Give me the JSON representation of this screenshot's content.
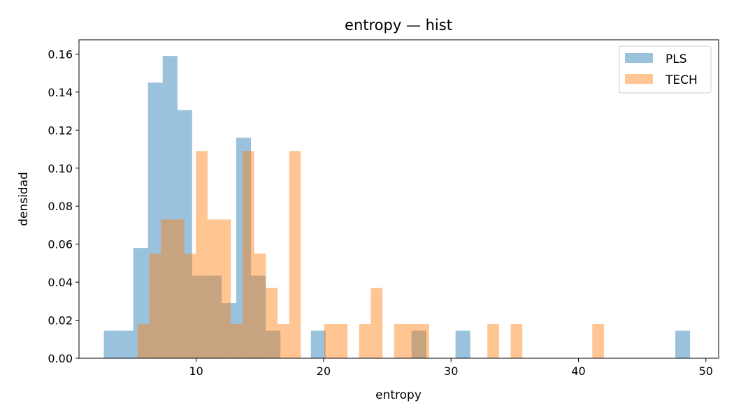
{
  "chart_data": {
    "type": "bar",
    "title": "entropy — hist",
    "xlabel": "entropy",
    "ylabel": "densidad",
    "xlim": [
      0.8,
      51.0
    ],
    "ylim": [
      0,
      0.1675
    ],
    "x_ticks": [
      10,
      20,
      30,
      40,
      50
    ],
    "y_ticks": [
      0.0,
      0.02,
      0.04,
      0.06,
      0.08,
      0.1,
      0.12,
      0.14,
      0.16
    ],
    "legend_position": "top-right",
    "grid": false,
    "series": [
      {
        "name": "PLS",
        "color": "#1f77b4",
        "opacity": 0.45,
        "bin_width": 1.155,
        "bins": [
          {
            "x0": 2.75,
            "value": 0.0145
          },
          {
            "x0": 3.905,
            "value": 0.0145
          },
          {
            "x0": 5.06,
            "value": 0.058
          },
          {
            "x0": 6.215,
            "value": 0.145
          },
          {
            "x0": 7.37,
            "value": 0.159
          },
          {
            "x0": 8.525,
            "value": 0.1305
          },
          {
            "x0": 9.68,
            "value": 0.0435
          },
          {
            "x0": 10.835,
            "value": 0.0435
          },
          {
            "x0": 11.99,
            "value": 0.029
          },
          {
            "x0": 13.145,
            "value": 0.116
          },
          {
            "x0": 14.3,
            "value": 0.0435
          },
          {
            "x0": 15.455,
            "value": 0.0145
          },
          {
            "x0": 19.0,
            "value": 0.0145
          },
          {
            "x0": 26.9,
            "value": 0.0145
          },
          {
            "x0": 30.35,
            "value": 0.0145
          },
          {
            "x0": 47.6,
            "value": 0.0145
          }
        ]
      },
      {
        "name": "TECH",
        "color": "#ff7f0e",
        "opacity": 0.45,
        "bin_width": 0.915,
        "bins": [
          {
            "x0": 5.4,
            "value": 0.018
          },
          {
            "x0": 6.315,
            "value": 0.055
          },
          {
            "x0": 7.23,
            "value": 0.073
          },
          {
            "x0": 8.145,
            "value": 0.073
          },
          {
            "x0": 9.06,
            "value": 0.055
          },
          {
            "x0": 9.975,
            "value": 0.109
          },
          {
            "x0": 10.89,
            "value": 0.073
          },
          {
            "x0": 11.805,
            "value": 0.073
          },
          {
            "x0": 12.72,
            "value": 0.018
          },
          {
            "x0": 13.635,
            "value": 0.109
          },
          {
            "x0": 14.55,
            "value": 0.055
          },
          {
            "x0": 15.465,
            "value": 0.037
          },
          {
            "x0": 16.38,
            "value": 0.018
          },
          {
            "x0": 17.295,
            "value": 0.109
          },
          {
            "x0": 20.04,
            "value": 0.018
          },
          {
            "x0": 20.955,
            "value": 0.018
          },
          {
            "x0": 22.785,
            "value": 0.018
          },
          {
            "x0": 23.7,
            "value": 0.037
          },
          {
            "x0": 25.53,
            "value": 0.018
          },
          {
            "x0": 26.445,
            "value": 0.018
          },
          {
            "x0": 27.36,
            "value": 0.018
          },
          {
            "x0": 32.85,
            "value": 0.018
          },
          {
            "x0": 34.68,
            "value": 0.018
          },
          {
            "x0": 41.085,
            "value": 0.018
          }
        ]
      }
    ]
  }
}
